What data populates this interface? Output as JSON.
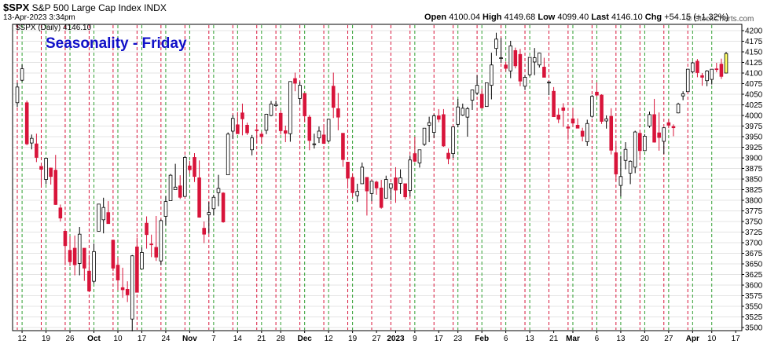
{
  "header": {
    "symbol": "$SPX",
    "name": "S&P 500 Large Cap Index",
    "exchange": "INDX",
    "datetime": "13-Apr-2023 3:34pm",
    "watermark": "© StockCharts.com",
    "legend": "$SPX (Daily) 4146.10",
    "ohlc": {
      "open_label": "Open",
      "open": "4100.04",
      "high_label": "High",
      "high": "4149.68",
      "low_label": "Low",
      "low": "4099.40",
      "last_label": "Last",
      "last": "4146.10",
      "chg_label": "Chg",
      "chg": "+54.15 (+1.32%)"
    }
  },
  "annotation": "Seasonality - Friday",
  "colors": {
    "up": "#ffffff",
    "up_border": "#000000",
    "down": "#d8143a",
    "gray_up": "#000000",
    "latest": "#ffff66",
    "monday_line": "#2e9e2e",
    "friday_line": "#d8143a",
    "grid": "#e4e4e4"
  },
  "chart_data": {
    "type": "candlestick",
    "y_axis": {
      "min": 3500,
      "max": 4200,
      "step": 25,
      "position": "right"
    },
    "x_ticks": [
      "12",
      "19",
      "26",
      "Oct",
      "10",
      "17",
      "24",
      "Nov",
      "7",
      "14",
      "21",
      "28",
      "Dec",
      "12",
      "19",
      "27",
      "2023",
      "9",
      "17",
      "23",
      "Feb",
      "6",
      "13",
      "21",
      "Mar",
      "6",
      "13",
      "20",
      "27",
      "Apr",
      "10",
      "17"
    ],
    "vertical_markers": "green dashed line at each Monday, red dashed line at each Friday",
    "candles": [
      {
        "d": "2022-09-09",
        "o": 4030,
        "h": 4077,
        "l": 4020,
        "c": 4067
      },
      {
        "d": "2022-09-12",
        "o": 4083,
        "h": 4120,
        "l": 4080,
        "c": 4110
      },
      {
        "d": "2022-09-13",
        "o": 4030,
        "h": 4035,
        "l": 3930,
        "c": 3933
      },
      {
        "d": "2022-09-14",
        "o": 3935,
        "h": 3955,
        "l": 3920,
        "c": 3946
      },
      {
        "d": "2022-09-15",
        "o": 3933,
        "h": 3957,
        "l": 3890,
        "c": 3901
      },
      {
        "d": "2022-09-16",
        "o": 3880,
        "h": 3880,
        "l": 3837,
        "c": 3873
      },
      {
        "d": "2022-09-19",
        "o": 3849,
        "h": 3900,
        "l": 3838,
        "c": 3899
      },
      {
        "d": "2022-09-20",
        "o": 3876,
        "h": 3877,
        "l": 3837,
        "c": 3856
      },
      {
        "d": "2022-09-21",
        "o": 3871,
        "h": 3907,
        "l": 3789,
        "c": 3790
      },
      {
        "d": "2022-09-22",
        "o": 3782,
        "h": 3790,
        "l": 3750,
        "c": 3758
      },
      {
        "d": "2022-09-23",
        "o": 3727,
        "h": 3727,
        "l": 3647,
        "c": 3693
      },
      {
        "d": "2022-09-26",
        "o": 3682,
        "h": 3715,
        "l": 3645,
        "c": 3655
      },
      {
        "d": "2022-09-27",
        "o": 3687,
        "h": 3717,
        "l": 3623,
        "c": 3648
      },
      {
        "d": "2022-09-28",
        "o": 3651,
        "h": 3737,
        "l": 3623,
        "c": 3720
      },
      {
        "d": "2022-09-29",
        "o": 3687,
        "h": 3687,
        "l": 3610,
        "c": 3640
      },
      {
        "d": "2022-09-30",
        "o": 3633,
        "h": 3671,
        "l": 3584,
        "c": 3586
      },
      {
        "d": "2022-10-03",
        "o": 3609,
        "h": 3698,
        "l": 3604,
        "c": 3679
      },
      {
        "d": "2022-10-04",
        "o": 3727,
        "h": 3790,
        "l": 3727,
        "c": 3791
      },
      {
        "d": "2022-10-05",
        "o": 3754,
        "h": 3806,
        "l": 3722,
        "c": 3783
      },
      {
        "d": "2022-10-06",
        "o": 3771,
        "h": 3798,
        "l": 3745,
        "c": 3745
      },
      {
        "d": "2022-10-07",
        "o": 3706,
        "h": 3707,
        "l": 3633,
        "c": 3640
      },
      {
        "d": "2022-10-10",
        "o": 3647,
        "h": 3666,
        "l": 3588,
        "c": 3612
      },
      {
        "d": "2022-10-11",
        "o": 3594,
        "h": 3641,
        "l": 3570,
        "c": 3589
      },
      {
        "d": "2022-10-12",
        "o": 3590,
        "h": 3609,
        "l": 3560,
        "c": 3577
      },
      {
        "d": "2022-10-13",
        "o": 3520,
        "h": 3671,
        "l": 3491,
        "c": 3669
      },
      {
        "d": "2022-10-14",
        "o": 3690,
        "h": 3712,
        "l": 3584,
        "c": 3583
      },
      {
        "d": "2022-10-17",
        "o": 3638,
        "h": 3689,
        "l": 3638,
        "c": 3677
      },
      {
        "d": "2022-10-18",
        "o": 3746,
        "h": 3762,
        "l": 3686,
        "c": 3719
      },
      {
        "d": "2022-10-19",
        "o": 3697,
        "h": 3719,
        "l": 3666,
        "c": 3695
      },
      {
        "d": "2022-10-20",
        "o": 3689,
        "h": 3763,
        "l": 3657,
        "c": 3666
      },
      {
        "d": "2022-10-21",
        "o": 3657,
        "h": 3755,
        "l": 3647,
        "c": 3752
      },
      {
        "d": "2022-10-24",
        "o": 3762,
        "h": 3810,
        "l": 3741,
        "c": 3797
      },
      {
        "d": "2022-10-25",
        "o": 3799,
        "h": 3862,
        "l": 3799,
        "c": 3859
      },
      {
        "d": "2022-10-26",
        "o": 3825,
        "h": 3886,
        "l": 3825,
        "c": 3831
      },
      {
        "d": "2022-10-27",
        "o": 3834,
        "h": 3859,
        "l": 3803,
        "c": 3807
      },
      {
        "d": "2022-10-28",
        "o": 3809,
        "h": 3905,
        "l": 3808,
        "c": 3901
      },
      {
        "d": "2022-10-31",
        "o": 3881,
        "h": 3893,
        "l": 3863,
        "c": 3872
      },
      {
        "d": "2022-11-01",
        "o": 3901,
        "h": 3911,
        "l": 3843,
        "c": 3856
      },
      {
        "d": "2022-11-02",
        "o": 3853,
        "h": 3894,
        "l": 3759,
        "c": 3760
      },
      {
        "d": "2022-11-03",
        "o": 3734,
        "h": 3750,
        "l": 3699,
        "c": 3720
      },
      {
        "d": "2022-11-04",
        "o": 3766,
        "h": 3796,
        "l": 3721,
        "c": 3771
      },
      {
        "d": "2022-11-07",
        "o": 3780,
        "h": 3813,
        "l": 3764,
        "c": 3807
      },
      {
        "d": "2022-11-08",
        "o": 3818,
        "h": 3860,
        "l": 3786,
        "c": 3828
      },
      {
        "d": "2022-11-09",
        "o": 3817,
        "h": 3819,
        "l": 3747,
        "c": 3749
      },
      {
        "d": "2022-11-10",
        "o": 3860,
        "h": 3960,
        "l": 3860,
        "c": 3956
      },
      {
        "d": "2022-11-11",
        "o": 3963,
        "h": 4001,
        "l": 3944,
        "c": 3993
      },
      {
        "d": "2022-11-14",
        "o": 3978,
        "h": 4008,
        "l": 3957,
        "c": 3957
      },
      {
        "d": "2022-11-15",
        "o": 4006,
        "h": 4028,
        "l": 3953,
        "c": 3992
      },
      {
        "d": "2022-11-16",
        "o": 3977,
        "h": 3983,
        "l": 3954,
        "c": 3959
      },
      {
        "d": "2022-11-17",
        "o": 3919,
        "h": 3954,
        "l": 3906,
        "c": 3947
      },
      {
        "d": "2022-11-18",
        "o": 3966,
        "h": 3979,
        "l": 3935,
        "c": 3965
      },
      {
        "d": "2022-11-21",
        "o": 3956,
        "h": 3962,
        "l": 3933,
        "c": 3950
      },
      {
        "d": "2022-11-22",
        "o": 3965,
        "h": 4004,
        "l": 3956,
        "c": 4003
      },
      {
        "d": "2022-11-23",
        "o": 4000,
        "h": 4034,
        "l": 3998,
        "c": 4027
      },
      {
        "d": "2022-11-25",
        "o": 4023,
        "h": 4035,
        "l": 4020,
        "c": 4026
      },
      {
        "d": "2022-11-28",
        "o": 4005,
        "h": 4012,
        "l": 3955,
        "c": 3964
      },
      {
        "d": "2022-11-29",
        "o": 3964,
        "h": 3976,
        "l": 3937,
        "c": 3958
      },
      {
        "d": "2022-11-30",
        "o": 3957,
        "h": 4080,
        "l": 3938,
        "c": 4080
      },
      {
        "d": "2022-12-01",
        "o": 4087,
        "h": 4101,
        "l": 4057,
        "c": 4076
      },
      {
        "d": "2022-12-02",
        "o": 4040,
        "h": 4080,
        "l": 4026,
        "c": 4071
      },
      {
        "d": "2022-12-05",
        "o": 4052,
        "h": 4052,
        "l": 3984,
        "c": 3999
      },
      {
        "d": "2022-12-06",
        "o": 3996,
        "h": 4001,
        "l": 3918,
        "c": 3941
      },
      {
        "d": "2022-12-07",
        "o": 3933,
        "h": 3957,
        "l": 3922,
        "c": 3933
      },
      {
        "d": "2022-12-08",
        "o": 3947,
        "h": 3974,
        "l": 3935,
        "c": 3963
      },
      {
        "d": "2022-12-09",
        "o": 3954,
        "h": 3977,
        "l": 3933,
        "c": 3934
      },
      {
        "d": "2022-12-12",
        "o": 3940,
        "h": 3991,
        "l": 3937,
        "c": 3991
      },
      {
        "d": "2022-12-13",
        "o": 4069,
        "h": 4101,
        "l": 3994,
        "c": 4019
      },
      {
        "d": "2022-12-14",
        "o": 4016,
        "h": 4053,
        "l": 3965,
        "c": 3996
      },
      {
        "d": "2022-12-15",
        "o": 3958,
        "h": 3958,
        "l": 3879,
        "c": 3896
      },
      {
        "d": "2022-12-16",
        "o": 3890,
        "h": 3890,
        "l": 3828,
        "c": 3852
      },
      {
        "d": "2022-12-19",
        "o": 3854,
        "h": 3864,
        "l": 3807,
        "c": 3818
      },
      {
        "d": "2022-12-20",
        "o": 3811,
        "h": 3839,
        "l": 3796,
        "c": 3821
      },
      {
        "d": "2022-12-21",
        "o": 3839,
        "h": 3889,
        "l": 3839,
        "c": 3878
      },
      {
        "d": "2022-12-22",
        "o": 3854,
        "h": 3854,
        "l": 3764,
        "c": 3822
      },
      {
        "d": "2022-12-23",
        "o": 3816,
        "h": 3845,
        "l": 3798,
        "c": 3845
      },
      {
        "d": "2022-12-27",
        "o": 3843,
        "h": 3846,
        "l": 3813,
        "c": 3829
      },
      {
        "d": "2022-12-28",
        "o": 3829,
        "h": 3848,
        "l": 3780,
        "c": 3783
      },
      {
        "d": "2022-12-29",
        "o": 3805,
        "h": 3858,
        "l": 3805,
        "c": 3849
      },
      {
        "d": "2022-12-30",
        "o": 3829,
        "h": 3839,
        "l": 3800,
        "c": 3839
      },
      {
        "d": "2023-01-03",
        "o": 3853,
        "h": 3878,
        "l": 3794,
        "c": 3824
      },
      {
        "d": "2023-01-04",
        "o": 3840,
        "h": 3873,
        "l": 3815,
        "c": 3853
      },
      {
        "d": "2023-01-05",
        "o": 3839,
        "h": 3839,
        "l": 3802,
        "c": 3808
      },
      {
        "d": "2023-01-06",
        "o": 3823,
        "h": 3906,
        "l": 3809,
        "c": 3895
      },
      {
        "d": "2023-01-09",
        "o": 3910,
        "h": 3950,
        "l": 3890,
        "c": 3892
      },
      {
        "d": "2023-01-10",
        "o": 3888,
        "h": 3919,
        "l": 3877,
        "c": 3919
      },
      {
        "d": "2023-01-11",
        "o": 3932,
        "h": 3970,
        "l": 3928,
        "c": 3970
      },
      {
        "d": "2023-01-12",
        "o": 3977,
        "h": 3997,
        "l": 3937,
        "c": 3983
      },
      {
        "d": "2023-01-13",
        "o": 3960,
        "h": 4003,
        "l": 3947,
        "c": 3999
      },
      {
        "d": "2023-01-17",
        "o": 3999,
        "h": 4015,
        "l": 3984,
        "c": 3991
      },
      {
        "d": "2023-01-18",
        "o": 4002,
        "h": 4015,
        "l": 3926,
        "c": 3928
      },
      {
        "d": "2023-01-19",
        "o": 3911,
        "h": 3922,
        "l": 3885,
        "c": 3898
      },
      {
        "d": "2023-01-20",
        "o": 3910,
        "h": 3973,
        "l": 3900,
        "c": 3973
      },
      {
        "d": "2023-01-23",
        "o": 3979,
        "h": 4039,
        "l": 3972,
        "c": 4020
      },
      {
        "d": "2023-01-24",
        "o": 4001,
        "h": 4028,
        "l": 3999,
        "c": 4017
      },
      {
        "d": "2023-01-25",
        "o": 3996,
        "h": 4020,
        "l": 3950,
        "c": 4016
      },
      {
        "d": "2023-01-26",
        "o": 4036,
        "h": 4061,
        "l": 4013,
        "c": 4060
      },
      {
        "d": "2023-01-27",
        "o": 4053,
        "h": 4095,
        "l": 4048,
        "c": 4071
      },
      {
        "d": "2023-01-30",
        "o": 4050,
        "h": 4063,
        "l": 4017,
        "c": 4018
      },
      {
        "d": "2023-01-31",
        "o": 4021,
        "h": 4077,
        "l": 4021,
        "c": 4077
      },
      {
        "d": "2023-02-01",
        "o": 4071,
        "h": 4148,
        "l": 4038,
        "c": 4119
      },
      {
        "d": "2023-02-02",
        "o": 4158,
        "h": 4195,
        "l": 4141,
        "c": 4180
      },
      {
        "d": "2023-02-03",
        "o": 4136,
        "h": 4183,
        "l": 4124,
        "c": 4136
      },
      {
        "d": "2023-02-06",
        "o": 4119,
        "h": 4127,
        "l": 4103,
        "c": 4111
      },
      {
        "d": "2023-02-07",
        "o": 4105,
        "h": 4176,
        "l": 4088,
        "c": 4164
      },
      {
        "d": "2023-02-08",
        "o": 4153,
        "h": 4160,
        "l": 4111,
        "c": 4117
      },
      {
        "d": "2023-02-09",
        "o": 4144,
        "h": 4157,
        "l": 4069,
        "c": 4081
      },
      {
        "d": "2023-02-10",
        "o": 4069,
        "h": 4095,
        "l": 4060,
        "c": 4090
      },
      {
        "d": "2023-02-13",
        "o": 4096,
        "h": 4138,
        "l": 4092,
        "c": 4137
      },
      {
        "d": "2023-02-14",
        "o": 4126,
        "h": 4159,
        "l": 4095,
        "c": 4136
      },
      {
        "d": "2023-02-15",
        "o": 4119,
        "h": 4148,
        "l": 4113,
        "c": 4147
      },
      {
        "d": "2023-02-16",
        "o": 4114,
        "h": 4136,
        "l": 4090,
        "c": 4090
      },
      {
        "d": "2023-02-17",
        "o": 4077,
        "h": 4081,
        "l": 4048,
        "c": 4079
      },
      {
        "d": "2023-02-21",
        "o": 4057,
        "h": 4067,
        "l": 3998,
        "c": 3997
      },
      {
        "d": "2023-02-22",
        "o": 4001,
        "h": 4017,
        "l": 3982,
        "c": 3991
      },
      {
        "d": "2023-02-23",
        "o": 4018,
        "h": 4029,
        "l": 3973,
        "c": 4012
      },
      {
        "d": "2023-02-24",
        "o": 3973,
        "h": 3979,
        "l": 3943,
        "c": 3970
      },
      {
        "d": "2023-02-27",
        "o": 3992,
        "h": 4018,
        "l": 3973,
        "c": 3982
      },
      {
        "d": "2023-02-28",
        "o": 3977,
        "h": 3993,
        "l": 3970,
        "c": 3970
      },
      {
        "d": "2023-03-01",
        "o": 3963,
        "h": 3971,
        "l": 3939,
        "c": 3951
      },
      {
        "d": "2023-03-02",
        "o": 3938,
        "h": 3990,
        "l": 3928,
        "c": 3981
      },
      {
        "d": "2023-03-03",
        "o": 3998,
        "h": 4048,
        "l": 3995,
        "c": 4045
      },
      {
        "d": "2023-03-06",
        "o": 4055,
        "h": 4078,
        "l": 4044,
        "c": 4048
      },
      {
        "d": "2023-03-07",
        "o": 4048,
        "h": 4050,
        "l": 3980,
        "c": 3986
      },
      {
        "d": "2023-03-08",
        "o": 3987,
        "h": 4000,
        "l": 3969,
        "c": 3992
      },
      {
        "d": "2023-03-09",
        "o": 3998,
        "h": 4017,
        "l": 3908,
        "c": 3918
      },
      {
        "d": "2023-03-10",
        "o": 3912,
        "h": 3934,
        "l": 3846,
        "c": 3862
      },
      {
        "d": "2023-03-13",
        "o": 3835,
        "h": 3905,
        "l": 3809,
        "c": 3856
      },
      {
        "d": "2023-03-14",
        "o": 3894,
        "h": 3937,
        "l": 3873,
        "c": 3920
      },
      {
        "d": "2023-03-15",
        "o": 3864,
        "h": 3894,
        "l": 3838,
        "c": 3892
      },
      {
        "d": "2023-03-16",
        "o": 3878,
        "h": 3964,
        "l": 3864,
        "c": 3961
      },
      {
        "d": "2023-03-17",
        "o": 3958,
        "h": 3959,
        "l": 3901,
        "c": 3917
      },
      {
        "d": "2023-03-20",
        "o": 3917,
        "h": 3956,
        "l": 3917,
        "c": 3951
      },
      {
        "d": "2023-03-21",
        "o": 3975,
        "h": 4009,
        "l": 3971,
        "c": 4002
      },
      {
        "d": "2023-03-22",
        "o": 4002,
        "h": 4039,
        "l": 3936,
        "c": 3937
      },
      {
        "d": "2023-03-23",
        "o": 3959,
        "h": 4007,
        "l": 3917,
        "c": 3948
      },
      {
        "d": "2023-03-24",
        "o": 3939,
        "h": 3972,
        "l": 3909,
        "c": 3971
      },
      {
        "d": "2023-03-27",
        "o": 3983,
        "h": 3992,
        "l": 3970,
        "c": 3977
      },
      {
        "d": "2023-03-28",
        "o": 3974,
        "h": 3979,
        "l": 3951,
        "c": 3971
      },
      {
        "d": "2023-03-29",
        "o": 4006,
        "h": 4030,
        "l": 4005,
        "c": 4027
      },
      {
        "d": "2023-03-30",
        "o": 4046,
        "h": 4057,
        "l": 4036,
        "c": 4051
      },
      {
        "d": "2023-03-31",
        "o": 4056,
        "h": 4110,
        "l": 4056,
        "c": 4109
      },
      {
        "d": "2023-04-03",
        "o": 4103,
        "h": 4127,
        "l": 4099,
        "c": 4124
      },
      {
        "d": "2023-04-04",
        "o": 4128,
        "h": 4133,
        "l": 4090,
        "c": 4101
      },
      {
        "d": "2023-04-05",
        "o": 4094,
        "h": 4100,
        "l": 4070,
        "c": 4090
      },
      {
        "d": "2023-04-06",
        "o": 4082,
        "h": 4107,
        "l": 4069,
        "c": 4105
      },
      {
        "d": "2023-04-10",
        "o": 4085,
        "h": 4109,
        "l": 4073,
        "c": 4109
      },
      {
        "d": "2023-04-11",
        "o": 4110,
        "h": 4124,
        "l": 4102,
        "c": 4108
      },
      {
        "d": "2023-04-12",
        "o": 4121,
        "h": 4134,
        "l": 4086,
        "c": 4092
      },
      {
        "d": "2023-04-13",
        "o": 4100,
        "h": 4150,
        "l": 4099,
        "c": 4146
      }
    ]
  }
}
